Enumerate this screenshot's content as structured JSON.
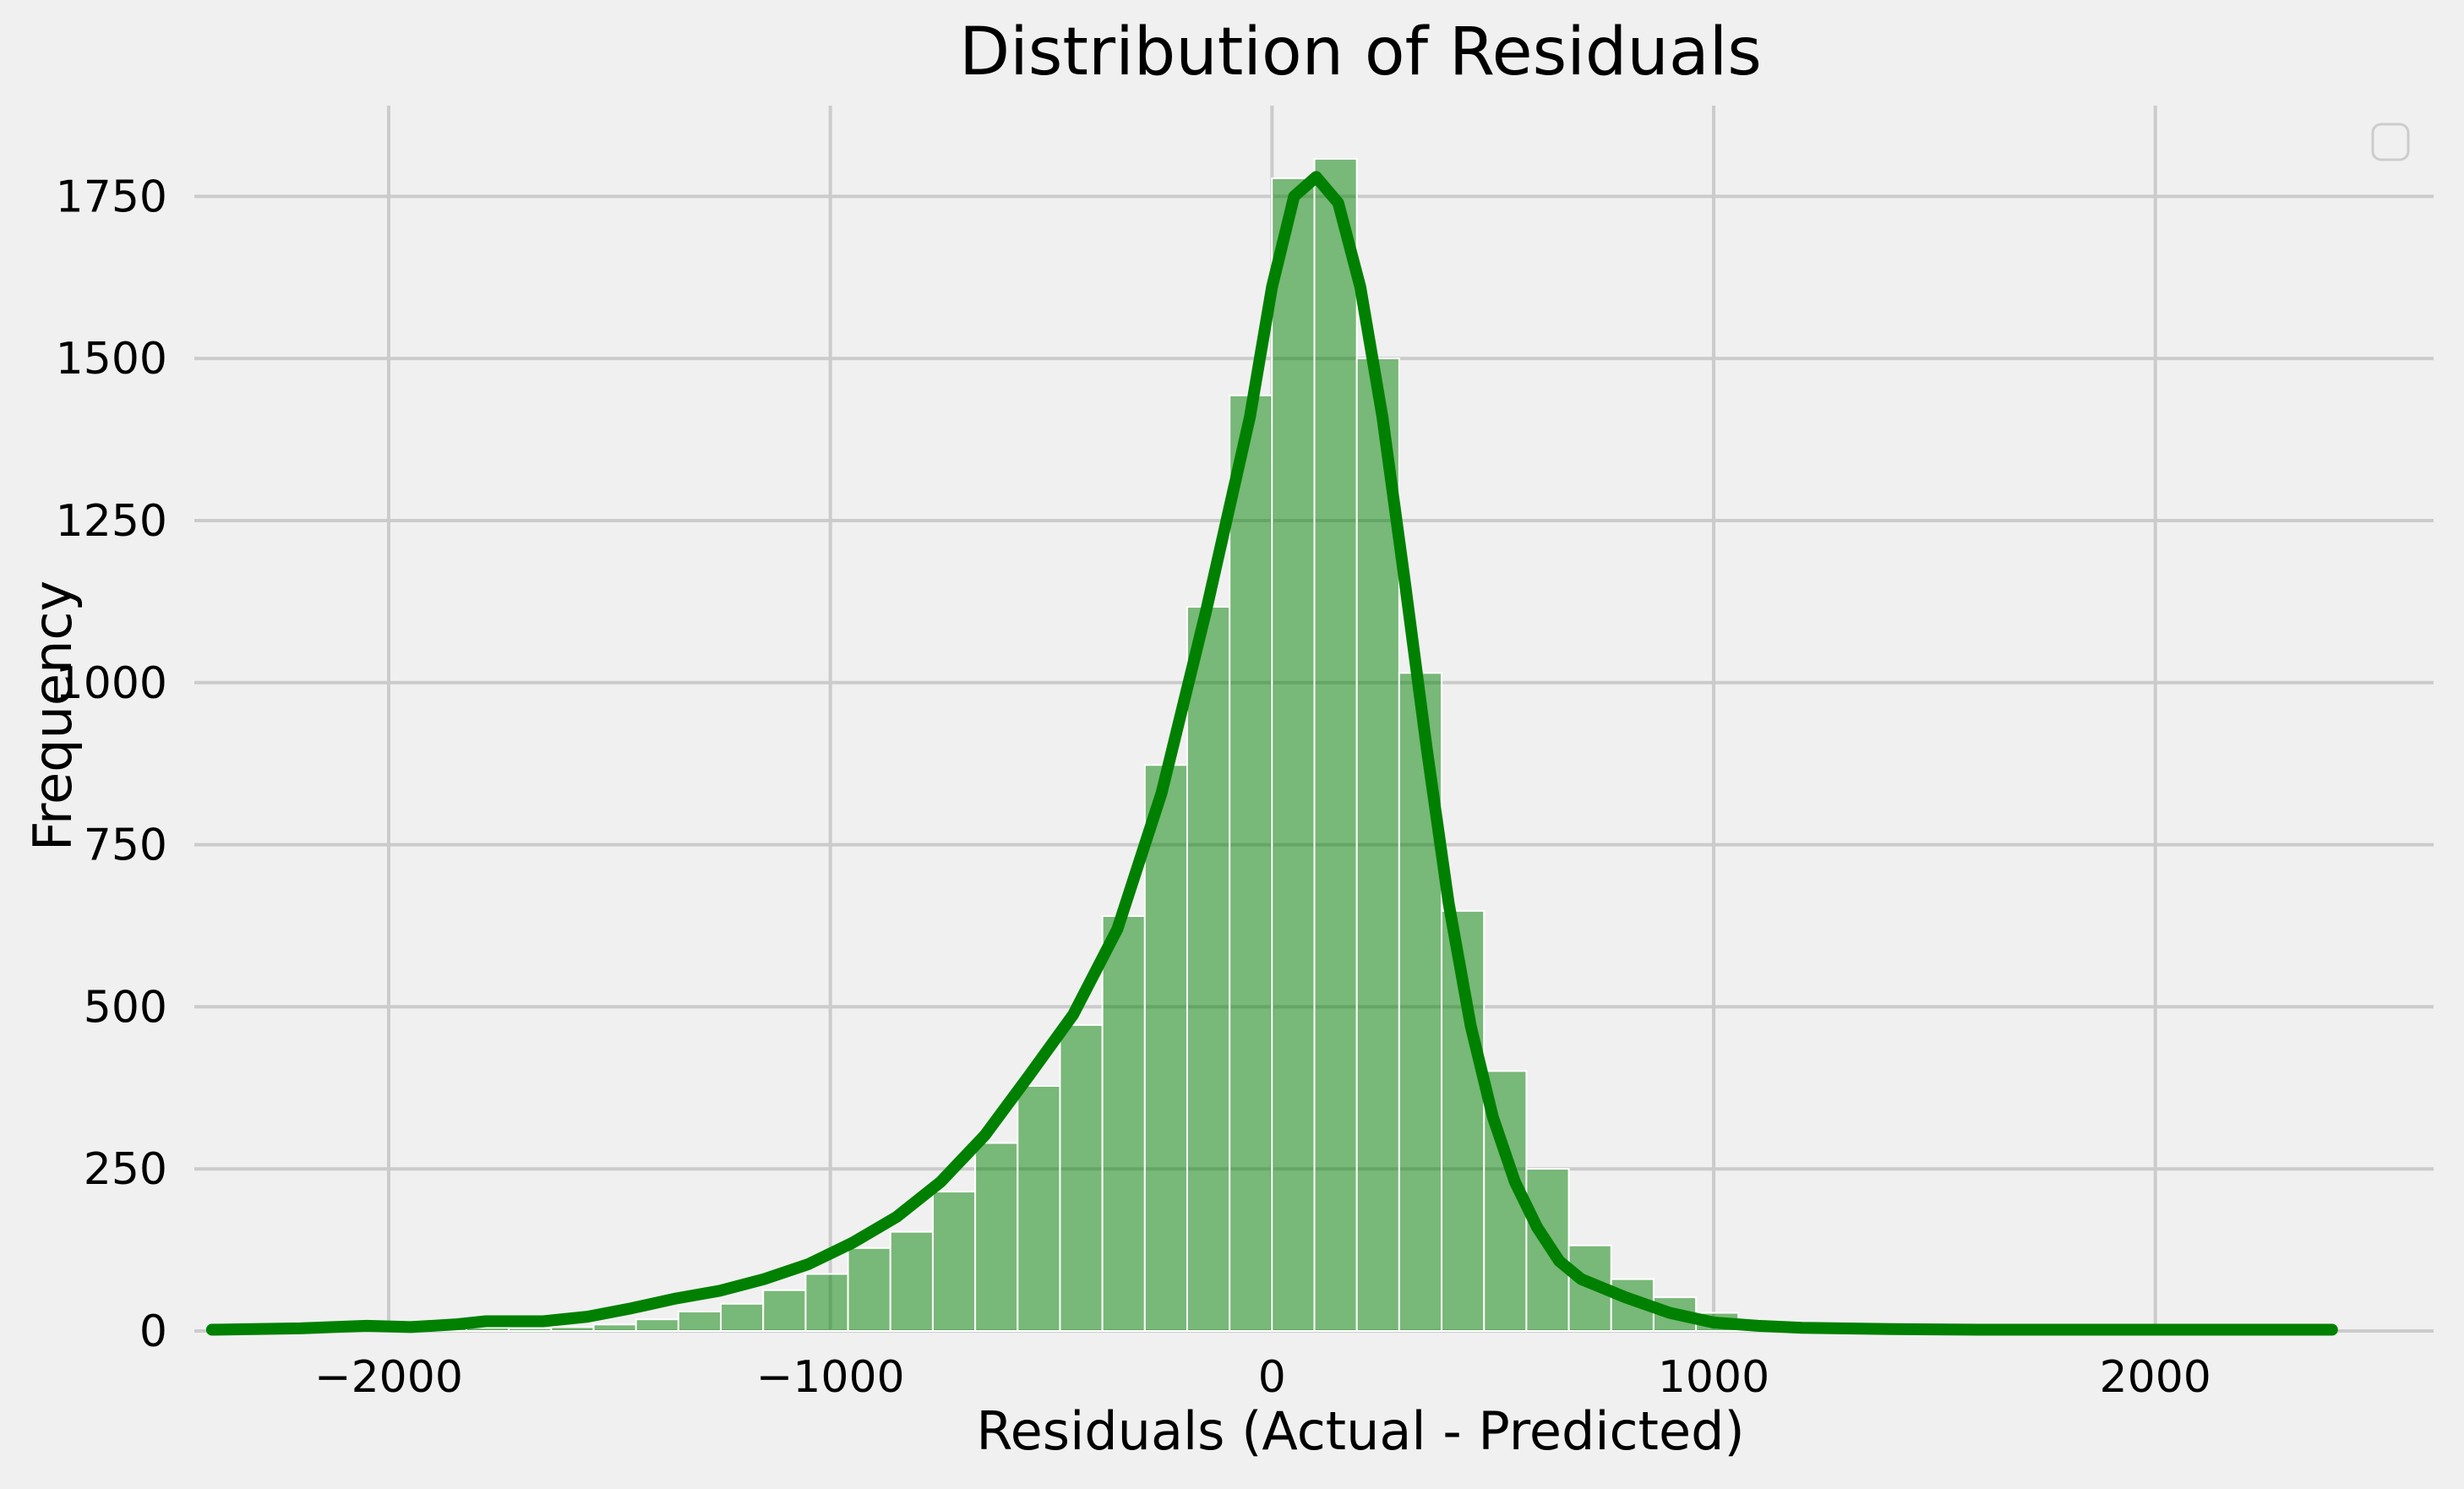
{
  "chart_data": {
    "type": "bar",
    "title": "Distribution of Residuals",
    "xlabel": "Residuals (Actual - Predicted)",
    "ylabel": "Frequency",
    "xlim": [
      -2440,
      2630
    ],
    "ylim": [
      0,
      1890
    ],
    "xticks": [
      -2000,
      -1000,
      0,
      1000,
      2000
    ],
    "xtick_labels": [
      "−2000",
      "−1000",
      "0",
      "1000",
      "2000"
    ],
    "yticks": [
      0,
      250,
      500,
      750,
      1000,
      1250,
      1500,
      1750
    ],
    "ytick_labels": [
      "0",
      "250",
      "500",
      "750",
      "1000",
      "1250",
      "1500",
      "1750"
    ],
    "grid": true,
    "legend": "top-right (empty)",
    "color": "#008000",
    "histogram": {
      "bin_edges": [
        -2400,
        -2304,
        -2208,
        -2112,
        -2016,
        -1920,
        -1824,
        -1728,
        -1632,
        -1536,
        -1440,
        -1344,
        -1248,
        -1152,
        -1056,
        -960,
        -864,
        -768,
        -672,
        -576,
        -480,
        -384,
        -288,
        -192,
        -96,
        0,
        96,
        192,
        288,
        384,
        480,
        576,
        672,
        768,
        864,
        960,
        1056,
        1152,
        1248,
        1344,
        1440,
        1536,
        1632,
        1728,
        1824,
        1920,
        2016,
        2112,
        2208,
        2304,
        2400
      ],
      "counts": [
        1,
        1,
        2,
        4,
        3,
        6,
        5,
        4,
        6,
        10,
        18,
        30,
        42,
        63,
        88,
        128,
        153,
        215,
        290,
        378,
        472,
        640,
        873,
        1117,
        1443,
        1778,
        1808,
        1500,
        1015,
        648,
        401,
        250,
        132,
        80,
        52,
        28,
        14,
        6,
        5,
        4,
        3,
        3,
        2,
        2,
        2,
        1,
        1,
        1,
        1,
        1
      ]
    },
    "kde_curve": {
      "x": [
        -2400,
        -2200,
        -2050,
        -1950,
        -1850,
        -1780,
        -1650,
        -1550,
        -1450,
        -1350,
        -1250,
        -1150,
        -1050,
        -950,
        -850,
        -750,
        -650,
        -550,
        -450,
        -350,
        -250,
        -150,
        -50,
        0,
        50,
        100,
        150,
        200,
        250,
        300,
        350,
        400,
        450,
        500,
        550,
        600,
        650,
        700,
        800,
        900,
        1000,
        1100,
        1200,
        1400,
        1600,
        1800,
        2000,
        2200,
        2400
      ],
      "y": [
        2,
        4,
        8,
        6,
        10,
        15,
        15,
        22,
        35,
        50,
        62,
        80,
        103,
        136,
        176,
        230,
        302,
        394,
        488,
        620,
        830,
        1108,
        1410,
        1610,
        1750,
        1780,
        1740,
        1610,
        1410,
        1160,
        900,
        660,
        470,
        330,
        230,
        160,
        108,
        80,
        52,
        28,
        13,
        8,
        5,
        3,
        2,
        2,
        2,
        2,
        2
      ]
    }
  }
}
